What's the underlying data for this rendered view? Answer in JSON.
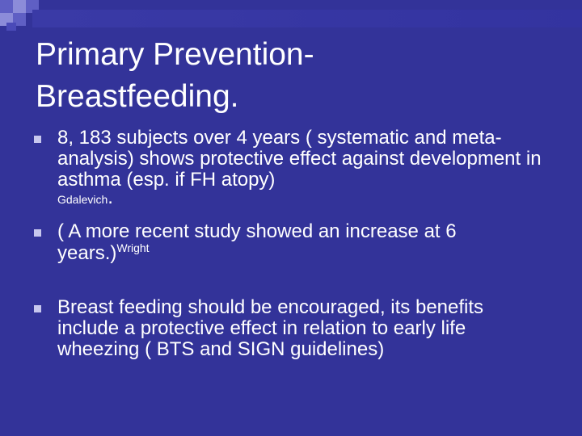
{
  "slide": {
    "title_line1": "Primary Prevention-",
    "title_line2": "Breastfeeding.",
    "bullets": [
      {
        "text": "8, 183 subjects over 4 years ( systematic and meta-analysis) shows protective effect against development in asthma (esp. if FH atopy)",
        "citation": "Gdalevich",
        "trailing": "."
      },
      {
        "text": "( A more recent study showed an increase at 6 years.)",
        "citation": "Wright"
      },
      {
        "text": "Breast feeding should be encouraged, its benefits include a protective effect in relation to early life wheezing ( BTS and SIGN guidelines)"
      }
    ],
    "colors": {
      "background": "#333399",
      "text": "#ffffff",
      "bullet_marker": "#c7c7ee",
      "deco_light": "#8c8cd9",
      "deco_mid": "#5f5fc4"
    }
  }
}
